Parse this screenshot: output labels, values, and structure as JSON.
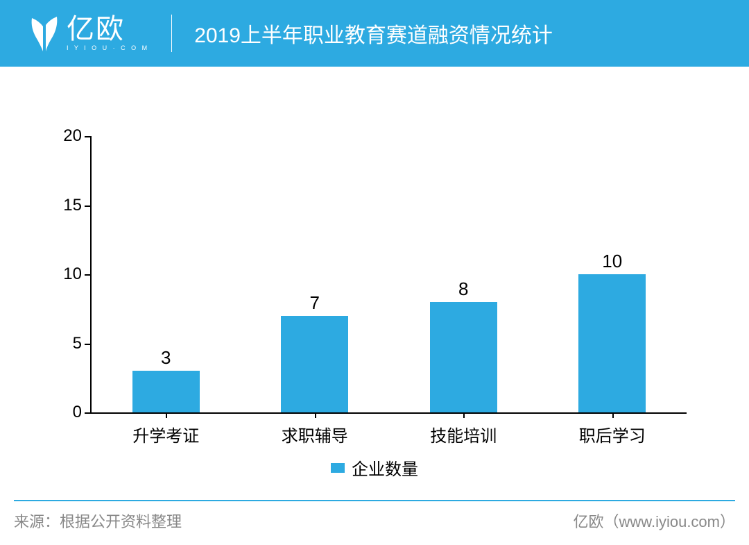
{
  "header": {
    "brand_cn": "亿欧",
    "brand_sub": "I Y I O U · C O M",
    "title": "2019上半年职业教育赛道融资情况统计"
  },
  "chart": {
    "type": "bar",
    "categories": [
      "升学考证",
      "求职辅导",
      "技能培训",
      "职后学习"
    ],
    "values": [
      3,
      7,
      8,
      10
    ],
    "bar_color": "#2daae1",
    "ylim": [
      0,
      20
    ],
    "ytick_step": 5,
    "yticks": [
      0,
      5,
      10,
      15,
      20
    ],
    "bar_width_ratio": 0.45,
    "axis_color": "#000000",
    "label_fontsize": 24,
    "value_label_fontsize": 26,
    "legend_label": "企业数量",
    "background_color": "#ffffff"
  },
  "footer": {
    "source": "来源：根据公开资料整理",
    "attribution": "亿欧（www.iyiou.com）"
  },
  "colors": {
    "header_bg": "#2daae1",
    "footer_line": "#2daae1",
    "footer_text": "#888888"
  }
}
